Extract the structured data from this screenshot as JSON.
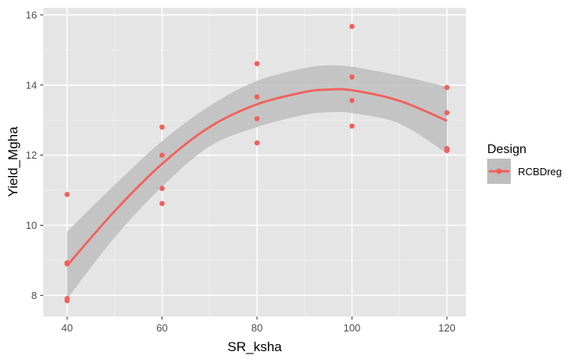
{
  "chart_data": {
    "type": "scatter",
    "xlabel": "SR_ksha",
    "ylabel": "Yield_Mgha",
    "xlim": [
      35,
      124
    ],
    "ylim": [
      7.4,
      16.2
    ],
    "x_ticks": [
      40,
      60,
      80,
      100,
      120
    ],
    "y_ticks": [
      8,
      10,
      12,
      14,
      16
    ],
    "x_tick_labels": [
      "40",
      "60",
      "80",
      "100",
      "120"
    ],
    "y_tick_labels": [
      "8",
      "10",
      "12",
      "14",
      "16"
    ],
    "x_minor": [
      50,
      70,
      90,
      110
    ],
    "y_minor": [
      9,
      11,
      13,
      15
    ],
    "grid": true,
    "legend": {
      "title": "Design",
      "position": "right",
      "entries": [
        "RCBDreg"
      ]
    },
    "series": [
      {
        "name": "RCBDreg",
        "color": "#f2605b",
        "points": [
          {
            "x": 40,
            "y": 10.88
          },
          {
            "x": 40,
            "y": 8.93
          },
          {
            "x": 40,
            "y": 8.9
          },
          {
            "x": 40,
            "y": 7.91
          },
          {
            "x": 40,
            "y": 7.85
          },
          {
            "x": 60,
            "y": 12.8
          },
          {
            "x": 60,
            "y": 12.0
          },
          {
            "x": 60,
            "y": 11.05
          },
          {
            "x": 60,
            "y": 10.62
          },
          {
            "x": 80,
            "y": 14.61
          },
          {
            "x": 80,
            "y": 13.66
          },
          {
            "x": 80,
            "y": 13.04
          },
          {
            "x": 80,
            "y": 12.35
          },
          {
            "x": 100,
            "y": 15.67
          },
          {
            "x": 100,
            "y": 14.23
          },
          {
            "x": 100,
            "y": 13.56
          },
          {
            "x": 100,
            "y": 12.83
          },
          {
            "x": 120,
            "y": 13.93
          },
          {
            "x": 120,
            "y": 13.21
          },
          {
            "x": 120,
            "y": 12.19
          },
          {
            "x": 120,
            "y": 12.13
          }
        ],
        "smooth_fit": {
          "x": [
            40,
            50,
            60,
            70,
            80,
            90,
            95,
            100,
            110,
            120
          ],
          "y": [
            8.85,
            10.4,
            11.75,
            12.8,
            13.45,
            13.8,
            13.87,
            13.85,
            13.55,
            12.98
          ],
          "lower": [
            7.9,
            9.65,
            11.1,
            12.25,
            12.8,
            13.15,
            13.22,
            13.2,
            12.9,
            12.05
          ],
          "upper": [
            9.82,
            11.15,
            12.4,
            13.4,
            14.12,
            14.48,
            14.56,
            14.52,
            14.27,
            13.95
          ]
        }
      }
    ],
    "band_color": "#bebebe"
  }
}
